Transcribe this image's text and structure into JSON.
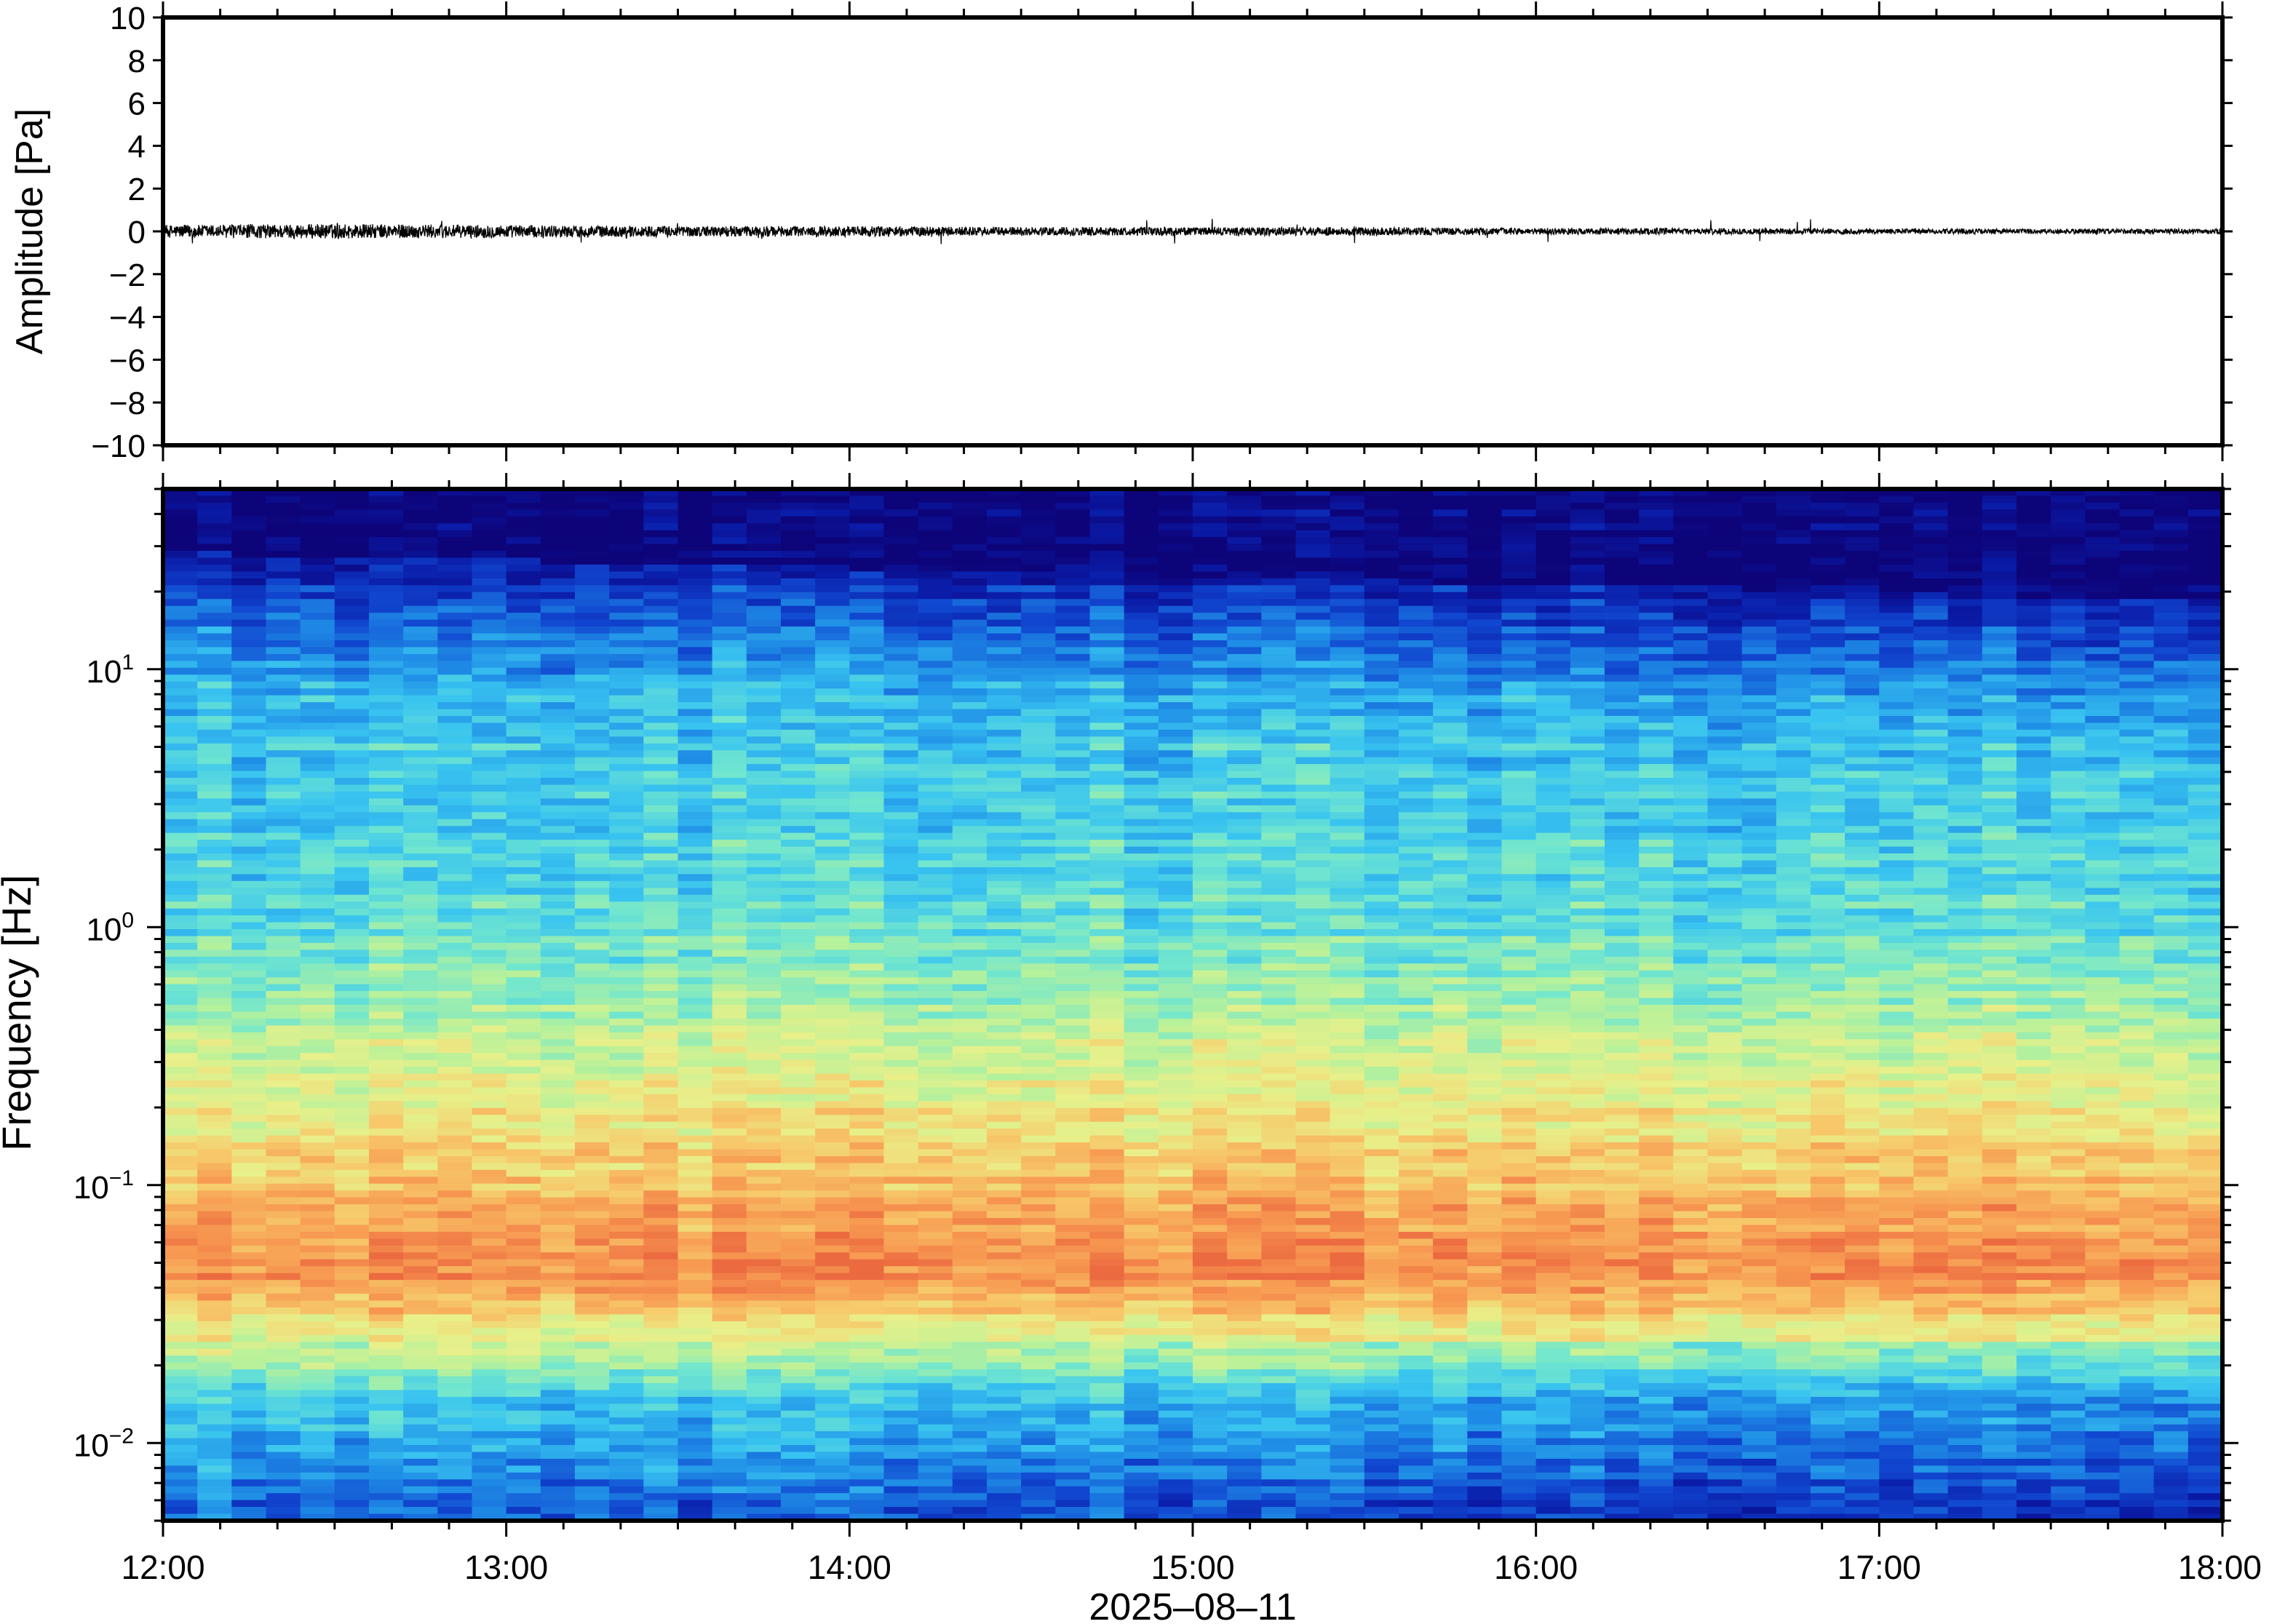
{
  "chart_data": [
    {
      "type": "line",
      "title": "",
      "xlabel": "",
      "ylabel": "Amplitude [Pa]",
      "ylim": [
        -10,
        10
      ],
      "y_ticks": [
        "10",
        "8",
        "6",
        "4",
        "2",
        "0",
        "−2",
        "−4",
        "−6",
        "−8",
        "−10"
      ],
      "y_tick_values": [
        10,
        8,
        6,
        4,
        2,
        0,
        -2,
        -4,
        -6,
        -8,
        -10
      ],
      "x_range": [
        "2025-08-11 12:00",
        "2025-08-11 18:00"
      ],
      "series": [
        {
          "description": "pressure waveform, near-zero noise",
          "x_hours": [
            12.0,
            12.5,
            13.0,
            13.5,
            14.0,
            14.5,
            15.0,
            15.5,
            16.0,
            16.5,
            17.0,
            17.5,
            18.0
          ],
          "envelope_pa": [
            0.3,
            0.35,
            0.3,
            0.25,
            0.25,
            0.2,
            0.2,
            0.2,
            0.15,
            0.15,
            0.12,
            0.12,
            0.12
          ],
          "max_spike_pa": 0.6
        }
      ],
      "color": "#000000"
    },
    {
      "type": "heatmap",
      "title": "",
      "ylabel": "Frequency [Hz]",
      "xlabel": "2025–08–11",
      "x_ticks": [
        "12:00",
        "13:00",
        "14:00",
        "15:00",
        "16:00",
        "17:00",
        "18:00"
      ],
      "x_tick_hours": [
        12,
        13,
        14,
        15,
        16,
        17,
        18
      ],
      "y_scale": "log",
      "ylim_hz": [
        0.005,
        50
      ],
      "y_ticks": [
        {
          "base": "10",
          "exp": "1",
          "value": 10
        },
        {
          "base": "10",
          "exp": "0",
          "value": 1
        },
        {
          "base": "10",
          "exp": "−1",
          "value": 0.1
        },
        {
          "base": "10",
          "exp": "−2",
          "value": 0.01
        }
      ],
      "colormap": [
        "#0d047a",
        "#0a1ca8",
        "#1147d0",
        "#1f8de6",
        "#39c4f0",
        "#70e6cf",
        "#b6f19b",
        "#e8f08a",
        "#f7c86a",
        "#f79a52",
        "#ec6a40"
      ],
      "profile_description": "Power peaks near 0.05–0.08 Hz, low at high frequencies (>20 Hz) and moderate at <0.01 Hz",
      "columns": 60
    }
  ]
}
